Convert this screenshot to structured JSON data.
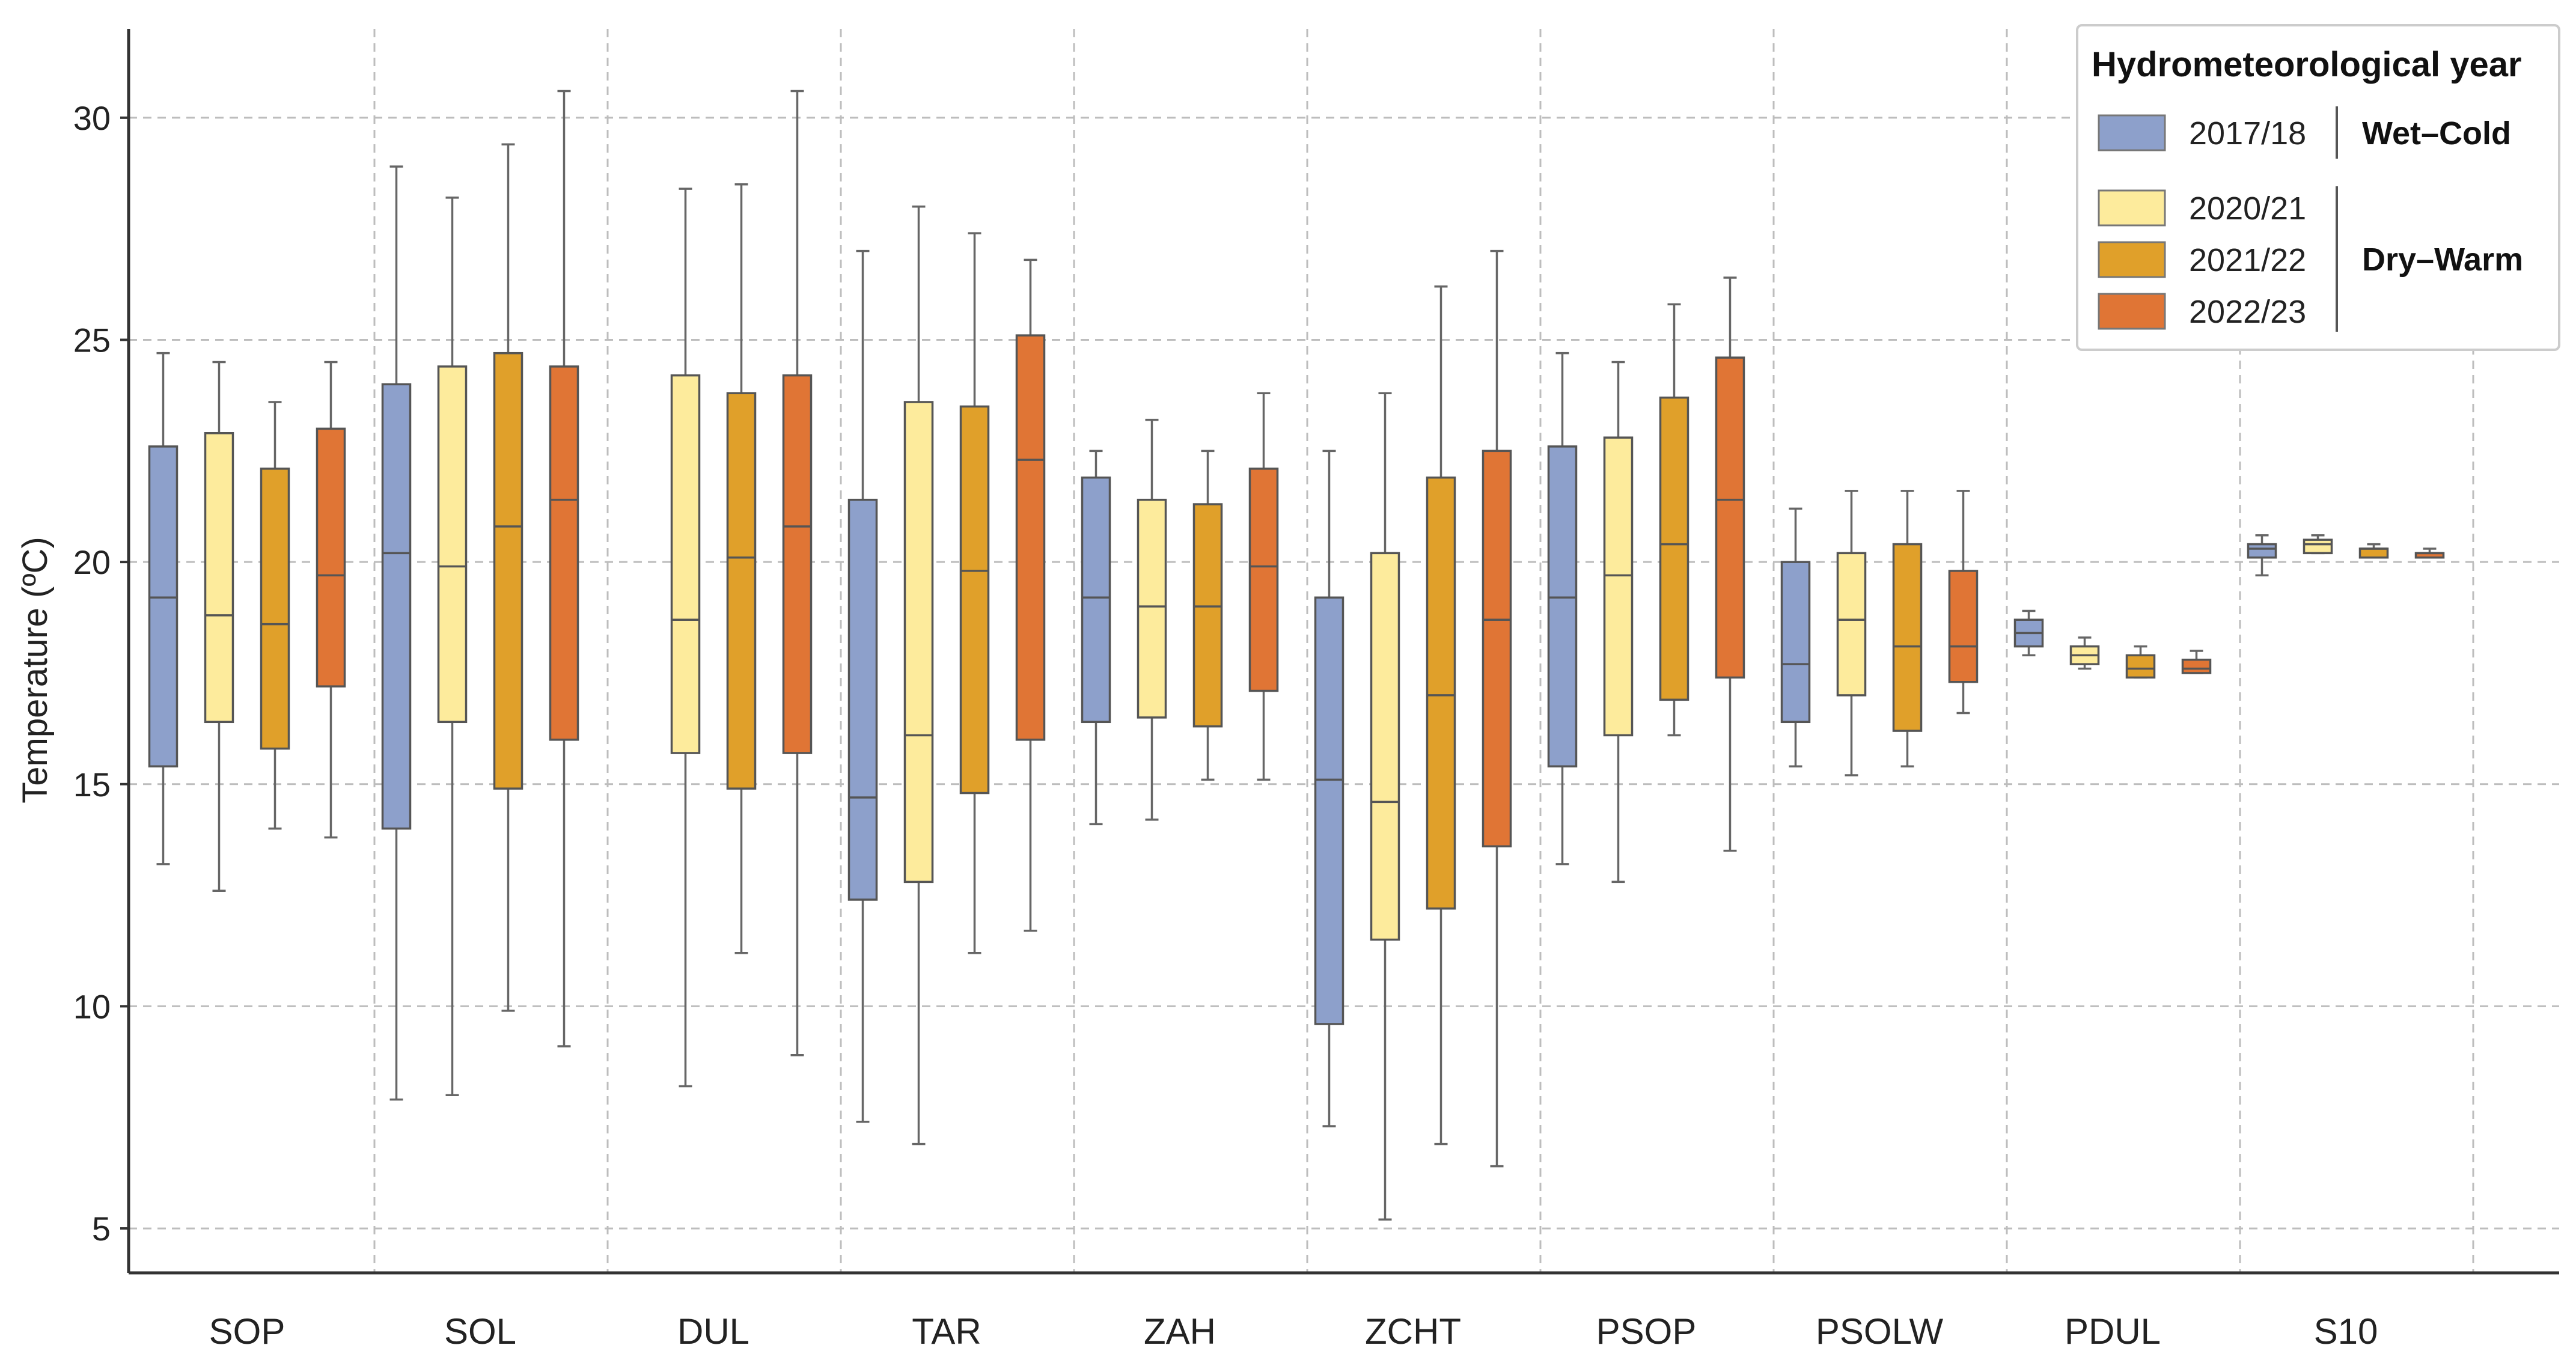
{
  "chart_data": {
    "type": "box",
    "title": "",
    "xlabel": "",
    "ylabel": "Temperature (ºC)",
    "ylim": [
      4,
      32
    ],
    "yticks": [
      5,
      10,
      15,
      20,
      25,
      30
    ],
    "grid": true,
    "categories": [
      "SOP",
      "SOL",
      "DUL",
      "TAR",
      "ZAH",
      "ZCHT",
      "PSOP",
      "PSOLW",
      "PDUL",
      "S10"
    ],
    "legend": {
      "title": "Hydrometeorological  year",
      "position": "top-right",
      "groups": [
        {
          "label": "Wet–Cold",
          "entries": [
            "2017/18"
          ]
        },
        {
          "label": "Dry–Warm",
          "entries": [
            "2020/21",
            "2021/22",
            "2022/23"
          ]
        }
      ]
    },
    "series": [
      {
        "name": "2017/18",
        "color": "#8da0cb",
        "boxes": [
          {
            "min": 13.2,
            "q1": 15.4,
            "median": 19.2,
            "q3": 22.6,
            "max": 24.7
          },
          {
            "min": 7.9,
            "q1": 14.0,
            "median": 20.2,
            "q3": 24.0,
            "max": 28.9
          },
          null,
          {
            "min": 7.4,
            "q1": 12.4,
            "median": 14.7,
            "q3": 21.4,
            "max": 27.0
          },
          {
            "min": 14.1,
            "q1": 16.4,
            "median": 19.2,
            "q3": 21.9,
            "max": 22.5
          },
          {
            "min": 7.3,
            "q1": 9.6,
            "median": 15.1,
            "q3": 19.2,
            "max": 22.5
          },
          {
            "min": 13.2,
            "q1": 15.4,
            "median": 19.2,
            "q3": 22.6,
            "max": 24.7
          },
          {
            "min": 15.4,
            "q1": 16.4,
            "median": 17.7,
            "q3": 20.0,
            "max": 21.2
          },
          {
            "min": 17.9,
            "q1": 18.1,
            "median": 18.4,
            "q3": 18.7,
            "max": 18.9
          },
          {
            "min": 19.7,
            "q1": 20.1,
            "median": 20.3,
            "q3": 20.4,
            "max": 20.6
          }
        ]
      },
      {
        "name": "2020/21",
        "color": "#fdeb9c",
        "boxes": [
          {
            "min": 12.6,
            "q1": 16.4,
            "median": 18.8,
            "q3": 22.9,
            "max": 24.5
          },
          {
            "min": 8.0,
            "q1": 16.4,
            "median": 19.9,
            "q3": 24.4,
            "max": 28.2
          },
          {
            "min": 8.2,
            "q1": 15.7,
            "median": 18.7,
            "q3": 24.2,
            "max": 28.4
          },
          {
            "min": 6.9,
            "q1": 12.8,
            "median": 16.1,
            "q3": 23.6,
            "max": 28.0
          },
          {
            "min": 14.2,
            "q1": 16.5,
            "median": 19.0,
            "q3": 21.4,
            "max": 23.2
          },
          {
            "min": 5.2,
            "q1": 11.5,
            "median": 14.6,
            "q3": 20.2,
            "max": 23.8
          },
          {
            "min": 12.8,
            "q1": 16.1,
            "median": 19.7,
            "q3": 22.8,
            "max": 24.5
          },
          {
            "min": 15.2,
            "q1": 17.0,
            "median": 18.7,
            "q3": 20.2,
            "max": 21.6
          },
          {
            "min": 17.6,
            "q1": 17.7,
            "median": 17.9,
            "q3": 18.1,
            "max": 18.3
          },
          {
            "min": 20.2,
            "q1": 20.2,
            "median": 20.4,
            "q3": 20.5,
            "max": 20.6
          }
        ]
      },
      {
        "name": "2021/22",
        "color": "#e0a02a",
        "boxes": [
          {
            "min": 14.0,
            "q1": 15.8,
            "median": 18.6,
            "q3": 22.1,
            "max": 23.6
          },
          {
            "min": 9.9,
            "q1": 14.9,
            "median": 20.8,
            "q3": 24.7,
            "max": 29.4
          },
          {
            "min": 11.2,
            "q1": 14.9,
            "median": 20.1,
            "q3": 23.8,
            "max": 28.5
          },
          {
            "min": 11.2,
            "q1": 14.8,
            "median": 19.8,
            "q3": 23.5,
            "max": 27.4
          },
          {
            "min": 15.1,
            "q1": 16.3,
            "median": 19.0,
            "q3": 21.3,
            "max": 22.5
          },
          {
            "min": 6.9,
            "q1": 12.2,
            "median": 17.0,
            "q3": 21.9,
            "max": 26.2
          },
          {
            "min": 16.1,
            "q1": 16.9,
            "median": 20.4,
            "q3": 23.7,
            "max": 25.8
          },
          {
            "min": 15.4,
            "q1": 16.2,
            "median": 18.1,
            "q3": 20.4,
            "max": 21.6
          },
          {
            "min": 17.4,
            "q1": 17.4,
            "median": 17.6,
            "q3": 17.9,
            "max": 18.1
          },
          {
            "min": 20.1,
            "q1": 20.1,
            "median": 20.3,
            "q3": 20.3,
            "max": 20.4
          }
        ]
      },
      {
        "name": "2022/23",
        "color": "#e07535",
        "boxes": [
          {
            "min": 13.8,
            "q1": 17.2,
            "median": 19.7,
            "q3": 23.0,
            "max": 24.5
          },
          {
            "min": 9.1,
            "q1": 16.0,
            "median": 21.4,
            "q3": 24.4,
            "max": 30.6
          },
          {
            "min": 8.9,
            "q1": 15.7,
            "median": 20.8,
            "q3": 24.2,
            "max": 30.6
          },
          {
            "min": 11.7,
            "q1": 16.0,
            "median": 22.3,
            "q3": 25.1,
            "max": 26.8
          },
          {
            "min": 15.1,
            "q1": 17.1,
            "median": 19.9,
            "q3": 22.1,
            "max": 23.8
          },
          {
            "min": 6.4,
            "q1": 13.6,
            "median": 18.7,
            "q3": 22.5,
            "max": 27.0
          },
          {
            "min": 13.5,
            "q1": 17.4,
            "median": 21.4,
            "q3": 24.6,
            "max": 26.4
          },
          {
            "min": 16.6,
            "q1": 17.3,
            "median": 18.1,
            "q3": 19.8,
            "max": 21.6
          },
          {
            "min": 17.5,
            "q1": 17.5,
            "median": 17.6,
            "q3": 17.8,
            "max": 18.0
          },
          {
            "min": 20.1,
            "q1": 20.1,
            "median": 20.2,
            "q3": 20.2,
            "max": 20.3
          }
        ]
      }
    ]
  }
}
